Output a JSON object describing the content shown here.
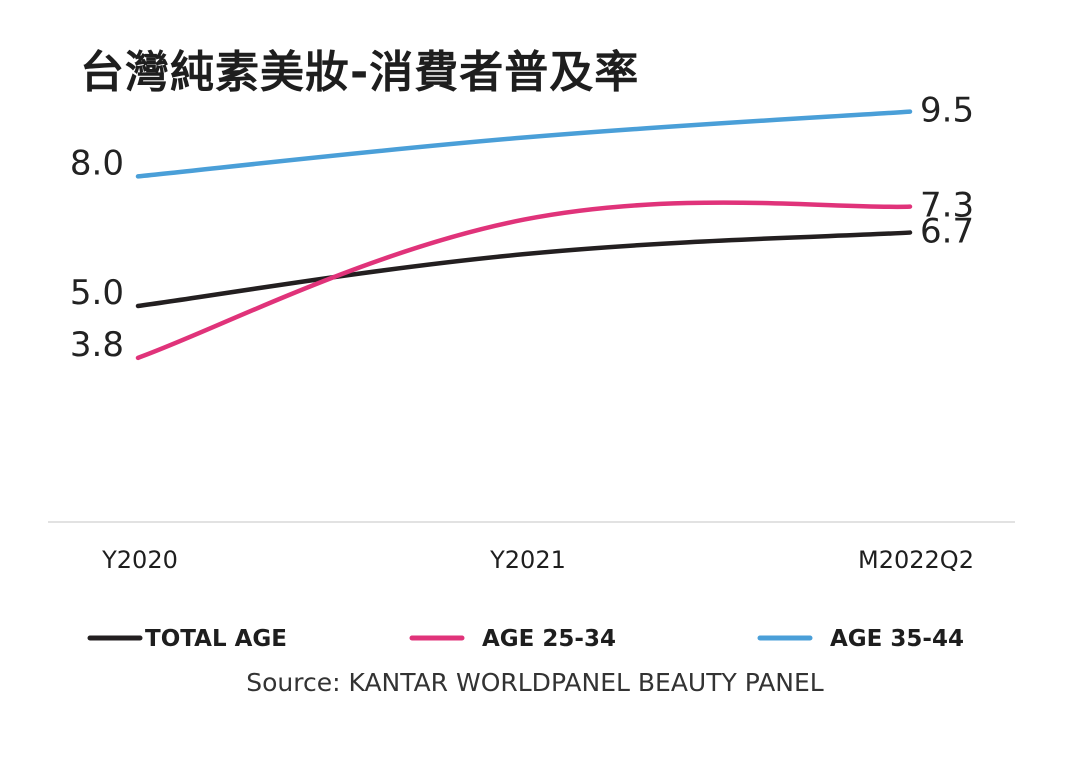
{
  "chart_data": {
    "type": "line",
    "title": "台灣純素美妝-消費者普及率",
    "categories": [
      "Y2020",
      "Y2021",
      "M2022Q2"
    ],
    "series": [
      {
        "name": "TOTAL AGE",
        "color": "#231f20",
        "values": [
          5.0,
          6.2,
          6.7
        ],
        "labels": [
          "5.0",
          "",
          "6.7"
        ]
      },
      {
        "name": "AGE 25-34",
        "color": "#e0337a",
        "values": [
          3.8,
          7.0,
          7.3
        ],
        "labels": [
          "3.8",
          "",
          "7.3"
        ]
      },
      {
        "name": "AGE 35-44",
        "color": "#4a9fd8",
        "values": [
          8.0,
          8.9,
          9.5
        ],
        "labels": [
          "8.0",
          "",
          "9.5"
        ]
      }
    ],
    "ylim": [
      0,
      10
    ],
    "grid": false,
    "legend_position": "bottom",
    "source": "Source: KANTAR WORLDPANEL BEAUTY PANEL"
  }
}
